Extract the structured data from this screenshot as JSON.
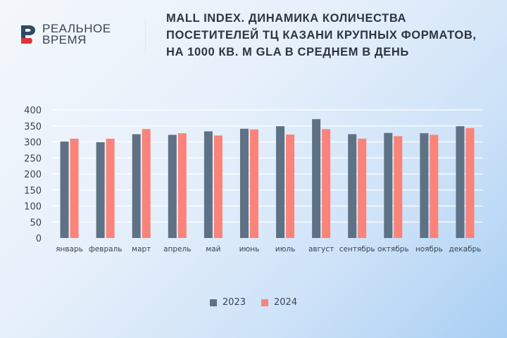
{
  "brand": {
    "line1": "РЕАЛЬНОЕ",
    "line2": "ВРЕМЯ",
    "logo_letter": "Р"
  },
  "title": "Mall Index. Динамика количества посетителей ТЦ Казани крупных форматов, на 1000 кв. м GLA в среднем в день",
  "colors": {
    "s2023": "#5f7185",
    "s2024": "#fb8379",
    "grid": "#ffffff",
    "text": "#3b4452"
  },
  "chart_data": {
    "type": "bar",
    "title": "Mall Index. Динамика количества посетителей ТЦ Казани крупных форматов, на 1000 кв. м GLA в среднем в день",
    "categories": [
      "январь",
      "февраль",
      "март",
      "апрель",
      "май",
      "июнь",
      "июль",
      "август",
      "сентябрь",
      "октябрь",
      "ноябрь",
      "декабрь"
    ],
    "series": [
      {
        "name": "2023",
        "values": [
          301,
          299,
          324,
          322,
          333,
          341,
          349,
          371,
          324,
          328,
          327,
          349
        ]
      },
      {
        "name": "2024",
        "values": [
          310,
          310,
          340,
          327,
          320,
          339,
          323,
          340,
          310,
          318,
          322,
          343
        ]
      }
    ],
    "yticks": [
      "0",
      "50",
      "100",
      "150",
      "200",
      "250",
      "300",
      "350",
      "400"
    ],
    "ylim": [
      0,
      400
    ],
    "grid": true,
    "legend": "bottom",
    "xlabel": "",
    "ylabel": ""
  }
}
